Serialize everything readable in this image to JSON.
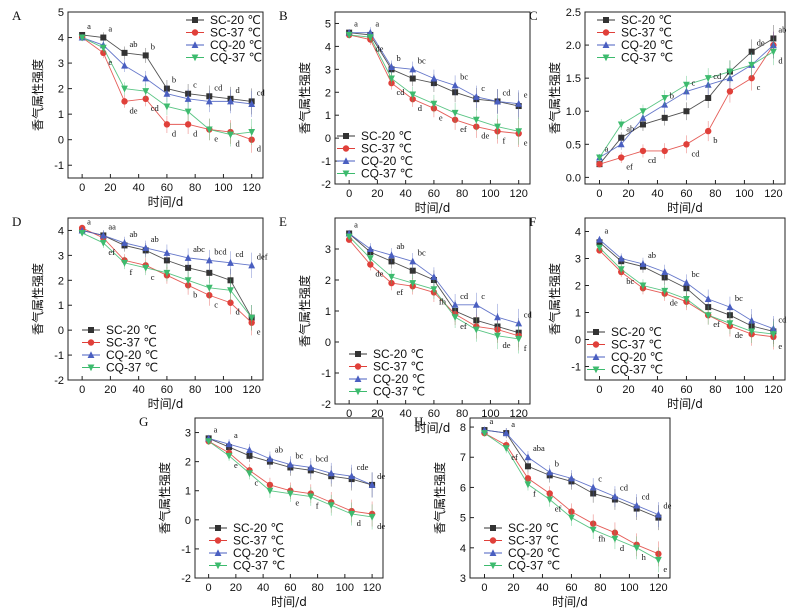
{
  "figure": {
    "ylabel": "香气属性强度",
    "xlabel": "时间/d",
    "legend": [
      "SC-20 ℃",
      "SC-37 ℃",
      "CQ-20 ℃",
      "CQ-37 ℃"
    ]
  },
  "series_styles": [
    {
      "name": "SC-20 ℃",
      "marker": "square",
      "color": "#333333"
    },
    {
      "name": "SC-37 ℃",
      "marker": "circle",
      "color": "#e0403a"
    },
    {
      "name": "CQ-20 ℃",
      "marker": "triangle-up",
      "color": "#4a5fc1"
    },
    {
      "name": "CQ-37 ℃",
      "marker": "triangle-down",
      "color": "#3dbb6e"
    }
  ],
  "chart_data": [
    {
      "type": "line",
      "title": "A",
      "xlabel": "时间/d",
      "ylabel": "香气属性强度",
      "x": [
        0,
        15,
        30,
        45,
        60,
        75,
        90,
        105,
        120
      ],
      "xticks": [
        0,
        20,
        40,
        60,
        80,
        100,
        120
      ],
      "ylim": [
        -1.5,
        5
      ],
      "yticks": [
        -1,
        0,
        1,
        2,
        3,
        4,
        5
      ],
      "legend_position": "top-right",
      "series": [
        {
          "name": "SC-20 ℃",
          "values": [
            4.1,
            4.0,
            3.4,
            3.3,
            2.0,
            1.8,
            1.7,
            1.6,
            1.5
          ]
        },
        {
          "name": "SC-37 ℃",
          "values": [
            4.0,
            3.4,
            1.5,
            1.6,
            0.6,
            0.6,
            0.4,
            0.3,
            0.0
          ]
        },
        {
          "name": "CQ-20 ℃",
          "values": [
            4.0,
            3.7,
            2.9,
            2.4,
            1.8,
            1.6,
            1.5,
            1.5,
            1.4
          ]
        },
        {
          "name": "CQ-37 ℃",
          "values": [
            4.0,
            3.6,
            2.0,
            1.9,
            1.3,
            1.1,
            0.4,
            0.2,
            0.3
          ]
        }
      ],
      "annotations": [
        "a",
        "a",
        "ab",
        "b",
        "b",
        "c",
        "cd",
        "d",
        "cd",
        "e",
        "de",
        "cd",
        "d",
        "d",
        "e",
        "d",
        "d"
      ]
    },
    {
      "type": "line",
      "title": "B",
      "xlabel": "时间/d",
      "ylabel": "香气属性强度",
      "x": [
        0,
        15,
        30,
        45,
        60,
        75,
        90,
        105,
        120
      ],
      "xticks": [
        0,
        20,
        40,
        60,
        80,
        100,
        120
      ],
      "ylim": [
        -2,
        5.5
      ],
      "yticks": [
        -2,
        -1,
        0,
        1,
        2,
        3,
        4,
        5
      ],
      "legend_position": "bottom-right",
      "series": [
        {
          "name": "SC-20 ℃",
          "values": [
            4.6,
            4.5,
            3.0,
            2.6,
            2.4,
            2.0,
            1.7,
            1.6,
            1.4
          ]
        },
        {
          "name": "SC-37 ℃",
          "values": [
            4.5,
            4.3,
            2.4,
            1.7,
            1.3,
            0.8,
            0.5,
            0.3,
            0.2
          ]
        },
        {
          "name": "CQ-20 ℃",
          "values": [
            4.6,
            4.6,
            3.1,
            3.0,
            2.6,
            2.3,
            1.8,
            1.6,
            1.5
          ]
        },
        {
          "name": "CQ-37 ℃",
          "values": [
            4.5,
            4.4,
            2.6,
            1.9,
            1.5,
            1.1,
            0.8,
            0.5,
            0.3
          ]
        }
      ],
      "annotations": [
        "a",
        "a",
        "b",
        "bc",
        "bc",
        "c",
        "cd",
        "e",
        "de",
        "cd",
        "d",
        "e",
        "ef",
        "de",
        "f",
        "e"
      ]
    },
    {
      "type": "line",
      "title": "C",
      "xlabel": "时间/d",
      "ylabel": "香气属性强度",
      "x": [
        0,
        15,
        30,
        45,
        60,
        75,
        90,
        105,
        120
      ],
      "xticks": [
        0,
        20,
        40,
        60,
        80,
        100,
        120
      ],
      "ylim": [
        -0.1,
        2.5
      ],
      "yticks": [
        0.0,
        0.5,
        1.0,
        1.5,
        2.0,
        2.5
      ],
      "legend_position": "top-left",
      "series": [
        {
          "name": "SC-20 ℃",
          "values": [
            0.2,
            0.6,
            0.8,
            0.9,
            1.0,
            1.2,
            1.6,
            1.9,
            2.1
          ]
        },
        {
          "name": "SC-37 ℃",
          "values": [
            0.2,
            0.3,
            0.4,
            0.4,
            0.5,
            0.7,
            1.3,
            1.5,
            2.0
          ]
        },
        {
          "name": "CQ-20 ℃",
          "values": [
            0.3,
            0.5,
            0.9,
            1.1,
            1.3,
            1.4,
            1.5,
            1.7,
            2.0
          ]
        },
        {
          "name": "CQ-37 ℃",
          "values": [
            0.3,
            0.8,
            1.0,
            1.2,
            1.4,
            1.5,
            1.6,
            1.7,
            1.9
          ]
        }
      ],
      "annotations": [
        "a",
        "ab",
        "b",
        "c",
        "cd",
        "de",
        "ab",
        "ef",
        "cd",
        "cd",
        "b",
        "c",
        "d"
      ]
    },
    {
      "type": "line",
      "title": "D",
      "xlabel": "时间/d",
      "ylabel": "香气属性强度",
      "x": [
        0,
        15,
        30,
        45,
        60,
        75,
        90,
        105,
        120
      ],
      "xticks": [
        0,
        20,
        40,
        60,
        80,
        100,
        120
      ],
      "ylim": [
        -2,
        4.5
      ],
      "yticks": [
        -2,
        -1,
        0,
        1,
        2,
        3,
        4
      ],
      "legend_position": "bottom-left",
      "series": [
        {
          "name": "SC-20 ℃",
          "values": [
            4.0,
            3.8,
            3.4,
            3.2,
            2.8,
            2.5,
            2.3,
            2.0,
            0.5
          ]
        },
        {
          "name": "SC-37 ℃",
          "values": [
            4.1,
            3.7,
            2.8,
            2.6,
            2.2,
            1.8,
            1.4,
            1.1,
            0.3
          ]
        },
        {
          "name": "CQ-20 ℃",
          "values": [
            4.0,
            3.8,
            3.5,
            3.3,
            3.1,
            2.9,
            2.8,
            2.7,
            2.6
          ]
        },
        {
          "name": "CQ-37 ℃",
          "values": [
            3.9,
            3.5,
            2.7,
            2.5,
            2.3,
            2.0,
            1.7,
            1.6,
            0.5
          ]
        }
      ],
      "annotations": [
        "a",
        "aa",
        "ab",
        "ab",
        "abc",
        "bcd",
        "cd",
        "def",
        "ef",
        "f",
        "c",
        "b",
        "c",
        "d",
        "e"
      ]
    },
    {
      "type": "line",
      "title": "E",
      "xlabel": "时间/d",
      "ylabel": "香气属性强度",
      "x": [
        0,
        15,
        30,
        45,
        60,
        75,
        90,
        105,
        120
      ],
      "xticks": [
        0,
        20,
        40,
        60,
        80,
        100,
        120
      ],
      "ylim": [
        -2,
        4
      ],
      "yticks": [
        -2,
        -1,
        0,
        1,
        2,
        3
      ],
      "legend_position": "bottom-left",
      "series": [
        {
          "name": "SC-20 ℃",
          "values": [
            3.5,
            2.9,
            2.6,
            2.3,
            2.0,
            1.0,
            0.7,
            0.5,
            0.3
          ]
        },
        {
          "name": "SC-37 ℃",
          "values": [
            3.3,
            2.5,
            1.9,
            1.8,
            1.6,
            0.9,
            0.5,
            0.4,
            0.2
          ]
        },
        {
          "name": "CQ-20 ℃",
          "values": [
            3.5,
            3.0,
            2.8,
            2.6,
            2.1,
            1.2,
            1.2,
            0.8,
            0.6
          ]
        },
        {
          "name": "CQ-37 ℃",
          "values": [
            3.4,
            2.7,
            2.1,
            1.9,
            1.7,
            0.8,
            0.4,
            0.2,
            0.1
          ]
        }
      ],
      "annotations": [
        "a",
        "ab",
        "bc",
        "cd",
        "c",
        "cd",
        "de",
        "ef",
        "fh",
        "ef",
        "de",
        "f"
      ]
    },
    {
      "type": "line",
      "title": "F",
      "xlabel": "时间/d",
      "ylabel": "香气属性强度",
      "x": [
        0,
        15,
        30,
        45,
        60,
        75,
        90,
        105,
        120
      ],
      "xticks": [
        0,
        20,
        40,
        60,
        80,
        100,
        120
      ],
      "ylim": [
        -1.5,
        4.5
      ],
      "yticks": [
        -1,
        0,
        1,
        2,
        3,
        4
      ],
      "legend_position": "bottom-right",
      "series": [
        {
          "name": "SC-20 ℃",
          "values": [
            3.6,
            2.9,
            2.7,
            2.3,
            1.9,
            1.2,
            0.9,
            0.5,
            0.3
          ]
        },
        {
          "name": "SC-37 ℃",
          "values": [
            3.3,
            2.5,
            1.9,
            1.7,
            1.4,
            0.9,
            0.5,
            0.2,
            0.1
          ]
        },
        {
          "name": "CQ-20 ℃",
          "values": [
            3.7,
            3.0,
            2.8,
            2.5,
            2.1,
            1.5,
            1.2,
            0.7,
            0.4
          ]
        },
        {
          "name": "CQ-37 ℃",
          "values": [
            3.4,
            2.6,
            2.0,
            1.8,
            1.5,
            0.9,
            0.6,
            0.3,
            0.2
          ]
        }
      ],
      "annotations": [
        "a",
        "ab",
        "bc",
        "bc",
        "cd",
        "bc",
        "de",
        "ef",
        "de",
        "e"
      ]
    },
    {
      "type": "line",
      "title": "G",
      "xlabel": "时间/d",
      "ylabel": "香气属性强度",
      "x": [
        0,
        15,
        30,
        45,
        60,
        75,
        90,
        105,
        120
      ],
      "xticks": [
        0,
        20,
        40,
        60,
        80,
        100,
        120
      ],
      "ylim": [
        -2,
        3.5
      ],
      "yticks": [
        -2,
        -1,
        0,
        1,
        2,
        3
      ],
      "legend_position": "bottom-left",
      "series": [
        {
          "name": "SC-20 ℃",
          "values": [
            2.8,
            2.5,
            2.2,
            2.0,
            1.8,
            1.7,
            1.5,
            1.4,
            1.2
          ]
        },
        {
          "name": "SC-37 ℃",
          "values": [
            2.7,
            2.3,
            1.7,
            1.2,
            1.0,
            0.9,
            0.6,
            0.3,
            0.2
          ]
        },
        {
          "name": "CQ-20 ℃",
          "values": [
            2.8,
            2.6,
            2.4,
            2.1,
            1.9,
            1.8,
            1.6,
            1.5,
            1.2
          ]
        },
        {
          "name": "CQ-37 ℃",
          "values": [
            2.7,
            2.2,
            1.6,
            1.0,
            0.9,
            0.8,
            0.5,
            0.2,
            0.1
          ]
        }
      ],
      "annotations": [
        "a",
        "a",
        "ab",
        "bc",
        "bcd",
        "cde",
        "de",
        "e",
        "c",
        "e",
        "f",
        "d",
        "de"
      ]
    },
    {
      "type": "line",
      "title": "H",
      "xlabel": "时间/d",
      "ylabel": "香气属性强度",
      "x": [
        0,
        15,
        30,
        45,
        60,
        75,
        90,
        105,
        120
      ],
      "xticks": [
        0,
        20,
        40,
        60,
        80,
        100,
        120
      ],
      "ylim": [
        3,
        8.3
      ],
      "yticks": [
        3,
        4,
        5,
        6,
        7,
        8
      ],
      "legend_position": "bottom-left",
      "series": [
        {
          "name": "SC-20 ℃",
          "values": [
            7.9,
            7.8,
            6.7,
            6.4,
            6.2,
            5.8,
            5.6,
            5.3,
            5.0
          ]
        },
        {
          "name": "SC-37 ℃",
          "values": [
            7.8,
            7.4,
            6.3,
            5.8,
            5.2,
            4.8,
            4.5,
            4.1,
            3.8
          ]
        },
        {
          "name": "CQ-20 ℃",
          "values": [
            7.9,
            7.8,
            7.0,
            6.5,
            6.3,
            6.0,
            5.7,
            5.4,
            5.1
          ]
        },
        {
          "name": "CQ-37 ℃",
          "values": [
            7.8,
            7.3,
            6.1,
            5.6,
            5.0,
            4.6,
            4.3,
            4.0,
            3.6
          ]
        }
      ],
      "annotations": [
        "a",
        "a",
        "aba",
        "b",
        "c",
        "cd",
        "cd",
        "de",
        "ef",
        "f",
        "ef",
        "fh",
        "d",
        "h",
        "e"
      ]
    }
  ]
}
